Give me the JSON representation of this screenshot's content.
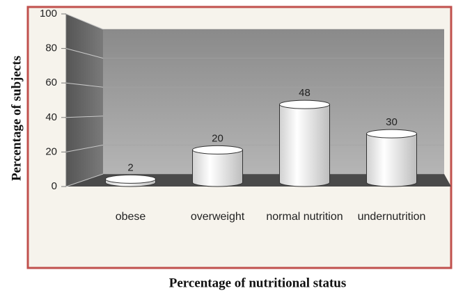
{
  "chart_data": {
    "type": "bar3d",
    "categories": [
      "obese",
      "overweight",
      "normal nutrition",
      "undernutrition"
    ],
    "values": [
      2,
      20,
      48,
      30
    ],
    "ylim": [
      0,
      100
    ],
    "yticks": [
      0,
      20,
      40,
      60,
      80,
      100
    ],
    "grid": true,
    "ylabel": "Percentage of subjects",
    "xlabel": "Percentage of nutritional status",
    "color": "#ffffff"
  }
}
